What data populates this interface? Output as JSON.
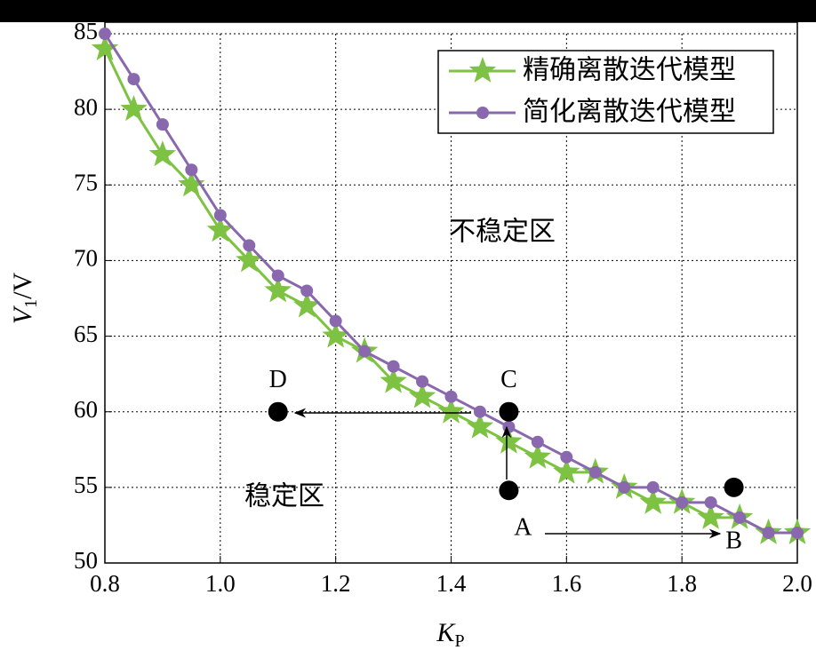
{
  "chart_data": {
    "type": "line",
    "xlabel": [
      "K",
      "P"
    ],
    "ylabel": [
      "V",
      "1",
      "/V"
    ],
    "x": [
      0.8,
      0.85,
      0.9,
      0.95,
      1.0,
      1.05,
      1.1,
      1.15,
      1.2,
      1.25,
      1.3,
      1.35,
      1.4,
      1.45,
      1.5,
      1.55,
      1.6,
      1.65,
      1.7,
      1.75,
      1.8,
      1.85,
      1.9,
      1.95,
      2.0
    ],
    "series": [
      {
        "name": "精确离散迭代模型",
        "color": "#7dc242",
        "marker": "star",
        "values": [
          84,
          80,
          77,
          75,
          72,
          70,
          68,
          67,
          65,
          64,
          62,
          61,
          60,
          59,
          58,
          57,
          56,
          56,
          55,
          54,
          54,
          53,
          53,
          52,
          52
        ]
      },
      {
        "name": "简化离散迭代模型",
        "color": "#8a68ae",
        "marker": "circle",
        "values": [
          85,
          82,
          79,
          76,
          73,
          71,
          69,
          68,
          66,
          64,
          63,
          62,
          61,
          60,
          59,
          58,
          57,
          56,
          55,
          55,
          54,
          54,
          53,
          52,
          52
        ]
      }
    ],
    "xlim": [
      0.8,
      2.0
    ],
    "xticks": [
      0.8,
      {
        "value": 1,
        "label": "1.0"
      },
      1.2,
      1.4,
      1.6,
      1.8,
      {
        "value": 2,
        "label": "2.0"
      }
    ],
    "ylim": [
      50,
      85
    ],
    "yticks": [
      50,
      55,
      60,
      65,
      70,
      75,
      80,
      85
    ],
    "grid": true,
    "legend": "upper right",
    "annotations": [
      "不稳定区",
      "稳定区"
    ],
    "points": [
      {
        "label": "A",
        "x": 1.5,
        "y": 54.8
      },
      {
        "label": "B",
        "x": 1.89,
        "y": 55
      },
      {
        "label": "C",
        "x": 1.5,
        "y": 60
      },
      {
        "label": "D",
        "x": 1.1,
        "y": 60
      }
    ]
  }
}
